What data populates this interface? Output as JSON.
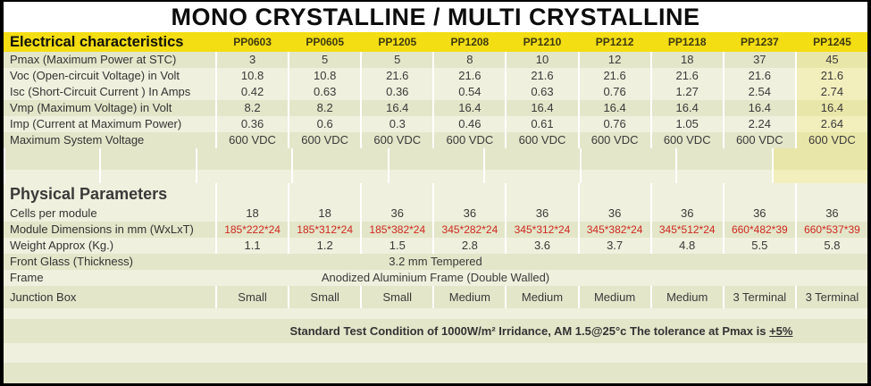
{
  "title": "MONO CRYSTALLINE / MULTI CRYSTALLINE",
  "table": {
    "electrical": {
      "section_label": "Electrical characteristics",
      "columns": [
        "PP0603",
        "PP0605",
        "PP1205",
        "PP1208",
        "PP1210",
        "PP1212",
        "PP1218",
        "PP1237",
        "PP1245"
      ],
      "rows": [
        {
          "label": "Pmax (Maximum Power at STC)",
          "values": [
            "3",
            "5",
            "5",
            "8",
            "10",
            "12",
            "18",
            "37",
            "45"
          ]
        },
        {
          "label": "Voc (Open-circuit Voltage) in Volt",
          "values": [
            "10.8",
            "10.8",
            "21.6",
            "21.6",
            "21.6",
            "21.6",
            "21.6",
            "21.6",
            "21.6"
          ]
        },
        {
          "label": "Isc (Short-Circuit Current ) In Amps",
          "values": [
            "0.42",
            "0.63",
            "0.36",
            "0.54",
            "0.63",
            "0.76",
            "1.27",
            "2.54",
            "2.74"
          ]
        },
        {
          "label": "Vmp (Maximum Voltage) in Volt",
          "values": [
            "8.2",
            "8.2",
            "16.4",
            "16.4",
            "16.4",
            "16.4",
            "16.4",
            "16.4",
            "16.4"
          ]
        },
        {
          "label": "Imp (Current at Maximum Power)",
          "values": [
            "0.36",
            "0.6",
            "0.3",
            "0.46",
            "0.61",
            "0.76",
            "1.05",
            "2.24",
            "2.64"
          ]
        },
        {
          "label": "Maximum System Voltage",
          "values": [
            "600 VDC",
            "600 VDC",
            "600 VDC",
            "600 VDC",
            "600 VDC",
            "600 VDC",
            "600 VDC",
            "600 VDC",
            "600 VDC"
          ]
        }
      ]
    },
    "physical": {
      "section_label": "Physical Parameters",
      "rows": [
        {
          "label": "Cells per module",
          "values": [
            "18",
            "18",
            "36",
            "36",
            "36",
            "36",
            "36",
            "36",
            "36"
          ]
        },
        {
          "label": "Module Dimensions in mm (WxLxT)",
          "value_color": "red",
          "values": [
            "185*222*24",
            "185*312*24",
            "185*382*24",
            "345*282*24",
            "345*312*24",
            "345*382*24",
            "345*512*24",
            "660*482*39",
            "660*537*39"
          ]
        },
        {
          "label": "Weight Approx (Kg.)",
          "values": [
            "1.1",
            "1.2",
            "1.5",
            "2.8",
            "3.6",
            "3.7",
            "4.8",
            "5.5",
            "5.8"
          ]
        },
        {
          "label": "Front Glass (Thickness)",
          "span_value": "3.2  mm Tempered"
        },
        {
          "label": "Frame",
          "span_value": "Anodized Aluminium Frame (Double Walled)"
        },
        {
          "label": "Junction Box",
          "values": [
            "Small",
            "Small",
            "Small",
            "Medium",
            "Medium",
            "Medium",
            "Medium",
            "3 Terminal",
            "3 Terminal"
          ]
        }
      ]
    }
  },
  "footer": {
    "text": "Standard Test Condition of 1000W/m² Irridance, AM 1.5@25°c The tolerance at Pmax is ",
    "tolerance": "+5%"
  },
  "colors": {
    "header_yellow": "#f3dd13",
    "row_sage": "#e3e6c9",
    "row_light": "#eff0dd",
    "last_column_tint": "#e9e6a9",
    "dimension_text_red": "#cf2821",
    "body_text": "#3a3a3a",
    "title_text": "#0d0d0d"
  }
}
